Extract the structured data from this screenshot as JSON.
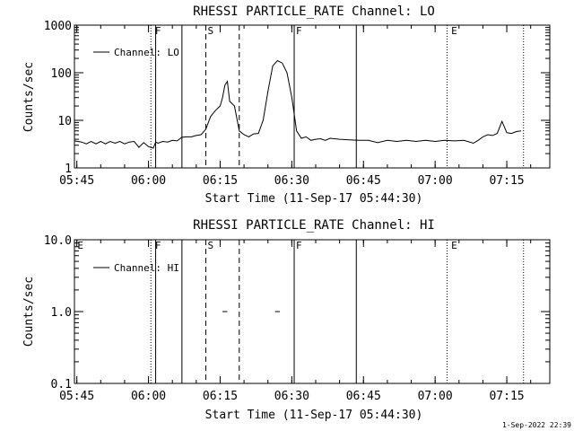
{
  "footer_date": "1-Sep-2022 22:39",
  "chart_data": [
    {
      "type": "line",
      "title": "RHESSI PARTICLE_RATE Channel: LO",
      "xlabel": "Start Time (11-Sep-17 05:44:30)",
      "ylabel": "Counts/sec",
      "y_scale": "log",
      "ylim": [
        1,
        1000
      ],
      "xlim": [
        "05:44:30",
        "07:24:00"
      ],
      "y_ticks": [
        "1",
        "10",
        "100",
        "1000"
      ],
      "x_ticks": [
        "05:45",
        "06:00",
        "06:15",
        "06:30",
        "06:45",
        "07:00",
        "07:15"
      ],
      "legend": "top-left",
      "series": [
        {
          "name": "Channel: LO",
          "points": [
            [
              "05:44:30",
              3.7
            ],
            [
              "05:46:00",
              3.5
            ],
            [
              "05:47:00",
              3.2
            ],
            [
              "05:48:00",
              3.6
            ],
            [
              "05:49:00",
              3.2
            ],
            [
              "05:50:00",
              3.6
            ],
            [
              "05:51:00",
              3.2
            ],
            [
              "05:52:00",
              3.6
            ],
            [
              "05:53:00",
              3.3
            ],
            [
              "05:54:00",
              3.6
            ],
            [
              "05:55:00",
              3.2
            ],
            [
              "05:56:00",
              3.5
            ],
            [
              "05:57:00",
              3.6
            ],
            [
              "05:58:00",
              2.7
            ],
            [
              "05:59:00",
              3.4
            ],
            [
              "06:00:00",
              2.8
            ],
            [
              "06:01:00",
              2.6
            ],
            [
              "06:01:30",
              3.5
            ],
            [
              "06:02:00",
              3.3
            ],
            [
              "06:03:00",
              3.6
            ],
            [
              "06:04:00",
              3.5
            ],
            [
              "06:05:00",
              3.8
            ],
            [
              "06:06:00",
              3.7
            ],
            [
              "06:07:00",
              4.4
            ],
            [
              "06:08:00",
              4.5
            ],
            [
              "06:09:00",
              4.5
            ],
            [
              "06:10:00",
              4.8
            ],
            [
              "06:11:00",
              5.0
            ],
            [
              "06:12:00",
              6.5
            ],
            [
              "06:13:00",
              12
            ],
            [
              "06:14:00",
              16
            ],
            [
              "06:15:00",
              20
            ],
            [
              "06:15:30",
              30
            ],
            [
              "06:16:00",
              55
            ],
            [
              "06:16:30",
              66
            ],
            [
              "06:17:00",
              25
            ],
            [
              "06:18:00",
              20
            ],
            [
              "06:19:00",
              6
            ],
            [
              "06:20:00",
              5
            ],
            [
              "06:21:00",
              4.5
            ],
            [
              "06:22:00",
              5.2
            ],
            [
              "06:23:00",
              5.3
            ],
            [
              "06:24:00",
              10
            ],
            [
              "06:25:00",
              40
            ],
            [
              "06:26:00",
              140
            ],
            [
              "06:27:00",
              180
            ],
            [
              "06:28:00",
              160
            ],
            [
              "06:29:00",
              100
            ],
            [
              "06:30:00",
              30
            ],
            [
              "06:31:00",
              6
            ],
            [
              "06:32:00",
              4.2
            ],
            [
              "06:33:00",
              4.5
            ],
            [
              "06:34:00",
              3.8
            ],
            [
              "06:35:00",
              4.0
            ],
            [
              "06:36:00",
              4.1
            ],
            [
              "06:37:00",
              3.8
            ],
            [
              "06:38:00",
              4.2
            ],
            [
              "06:40:00",
              4.0
            ],
            [
              "06:42:00",
              3.9
            ],
            [
              "06:44:00",
              3.8
            ],
            [
              "06:46:00",
              3.8
            ],
            [
              "06:48:00",
              3.4
            ],
            [
              "06:50:00",
              3.8
            ],
            [
              "06:52:00",
              3.6
            ],
            [
              "06:54:00",
              3.8
            ],
            [
              "06:56:00",
              3.6
            ],
            [
              "06:58:00",
              3.8
            ],
            [
              "07:00:00",
              3.6
            ],
            [
              "07:02:00",
              3.8
            ],
            [
              "07:04:00",
              3.7
            ],
            [
              "07:06:00",
              3.8
            ],
            [
              "07:08:00",
              3.3
            ],
            [
              "07:09:00",
              3.8
            ],
            [
              "07:10:00",
              4.5
            ],
            [
              "07:11:00",
              5.0
            ],
            [
              "07:12:00",
              4.8
            ],
            [
              "07:13:00",
              5.3
            ],
            [
              "07:14:00",
              9.5
            ],
            [
              "07:15:00",
              5.5
            ],
            [
              "07:16:00",
              5.3
            ],
            [
              "07:17:00",
              5.8
            ],
            [
              "07:18:00",
              6.0
            ]
          ]
        }
      ],
      "markers": [
        {
          "label": "F",
          "time": "06:01:00"
        },
        {
          "label": "S",
          "time": "06:12:00"
        },
        {
          "label": "F",
          "time": "06:30:30"
        },
        {
          "label": "E",
          "time": "07:03:00"
        }
      ]
    },
    {
      "type": "line",
      "title": "RHESSI PARTICLE_RATE Channel: HI",
      "xlabel": "Start Time (11-Sep-17 05:44:30)",
      "ylabel": "Counts/sec",
      "y_scale": "log",
      "ylim": [
        0.1,
        10
      ],
      "xlim": [
        "05:44:30",
        "07:24:00"
      ],
      "y_ticks": [
        "0.1",
        "1.0",
        "10.0"
      ],
      "x_ticks": [
        "05:45",
        "06:00",
        "06:15",
        "06:30",
        "06:45",
        "07:00",
        "07:15"
      ],
      "legend": "top-left",
      "series": [
        {
          "name": "Channel: HI",
          "segments": [
            [
              [
                "06:15:30",
                1.0
              ],
              [
                "06:16:30",
                1.0
              ]
            ],
            [
              [
                "06:26:30",
                1.0
              ],
              [
                "06:27:30",
                1.0
              ]
            ]
          ]
        }
      ],
      "markers": [
        {
          "label": "E",
          "time": "05:44:45"
        },
        {
          "label": "F",
          "time": "06:01:00"
        },
        {
          "label": "S",
          "time": "06:12:00"
        },
        {
          "label": "F",
          "time": "06:30:30"
        },
        {
          "label": "E",
          "time": "07:03:00"
        }
      ]
    }
  ]
}
